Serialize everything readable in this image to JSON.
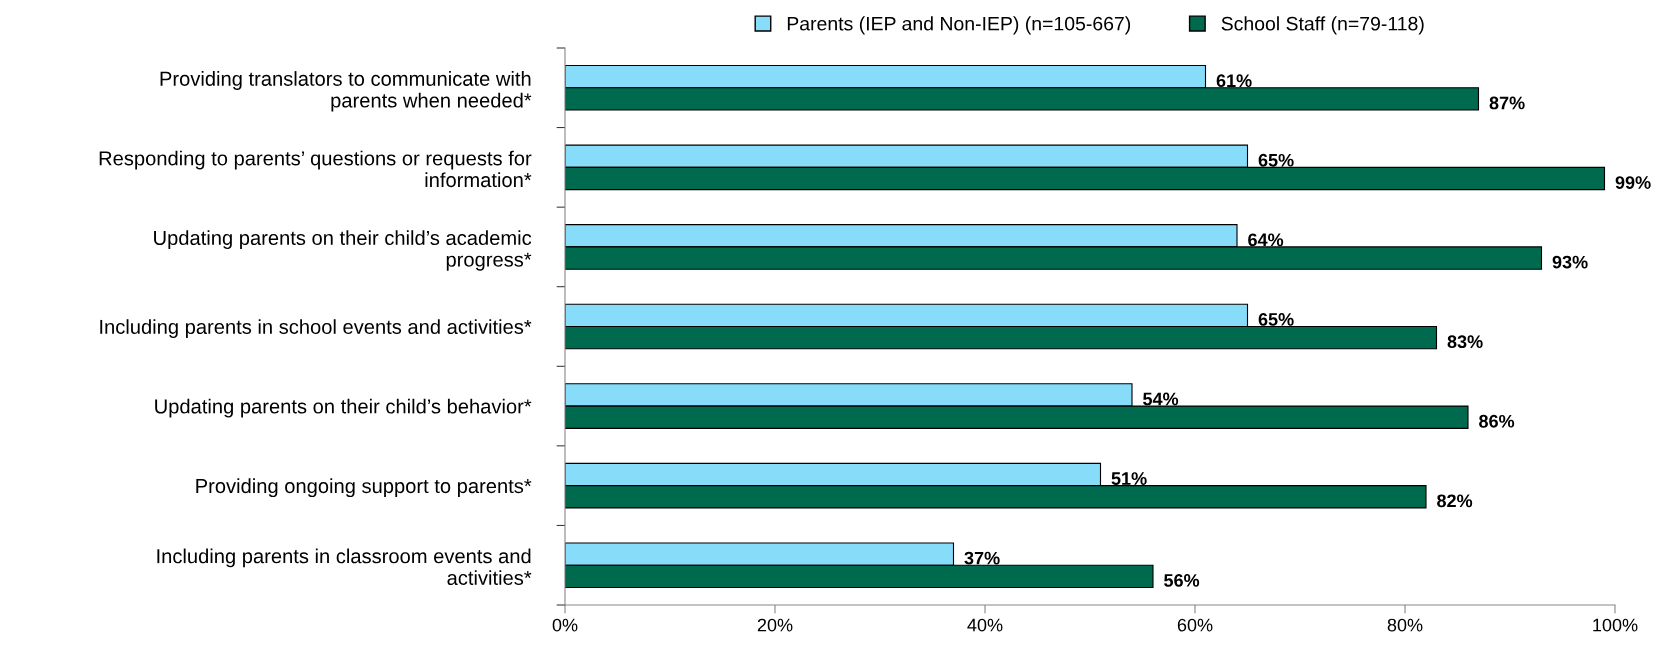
{
  "chart_data": {
    "type": "bar",
    "orientation": "horizontal",
    "categories": [
      "Providing translators to communicate with\nparents when needed*",
      "Responding to parents’ questions or requests for\ninformation*",
      "Updating parents on their child’s academic\nprogress*",
      "Including parents in school events and activities*",
      "Updating parents on their child’s behavior*",
      "Providing ongoing support to parents*",
      "Including parents in classroom events and\nactivities*"
    ],
    "series": [
      {
        "name": "Parents (IEP and Non-IEP) (n=105-667)",
        "color": "#87dcfa",
        "values": [
          61,
          65,
          64,
          65,
          54,
          51,
          37
        ],
        "value_labels": [
          "61%",
          "65%",
          "64%",
          "65%",
          "54%",
          "51%",
          "37%"
        ]
      },
      {
        "name": "School Staff (n=79-118)",
        "color": "#006a4e",
        "values": [
          87,
          99,
          93,
          83,
          86,
          82,
          56
        ],
        "value_labels": [
          "87%",
          "99%",
          "93%",
          "83%",
          "86%",
          "82%",
          "56%"
        ]
      }
    ],
    "xlim": [
      0,
      100
    ],
    "xticks": [
      {
        "value": 0,
        "label": "0%"
      },
      {
        "value": 20,
        "label": "20%"
      },
      {
        "value": 40,
        "label": "40%"
      },
      {
        "value": 60,
        "label": "60%"
      },
      {
        "value": 80,
        "label": "80%"
      },
      {
        "value": 100,
        "label": "100%"
      }
    ],
    "grid": false,
    "legend": "top"
  }
}
